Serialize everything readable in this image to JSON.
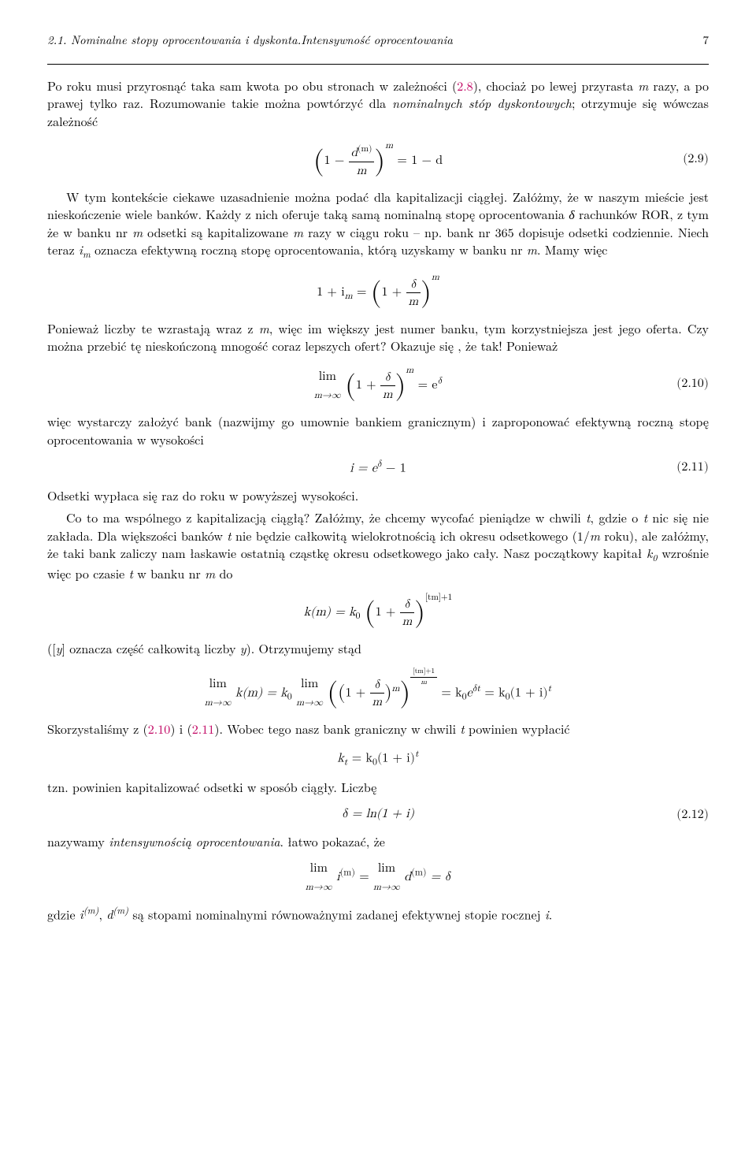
{
  "header": {
    "section": "2.1. Nominalne stopy oprocentowania i dyskonta.Intensywność oprocentowania",
    "page": "7"
  },
  "para1_a": "Po roku musi przyrosnąć taka sam kwota po obu stronach w zależności (",
  "ref28": "2.8",
  "para1_b": "), chociaż po lewej przyrasta ",
  "para1_c": " razy, a po prawej tylko raz. Rozumowanie takie można powtórzyć dla ",
  "para1_d": "nominalnych stóp dyskontowych",
  "para1_e": "; otrzymuje się wówczas zależność",
  "eq29": {
    "formula_prefix": "1 − ",
    "formula_frac_num": "d",
    "formula_frac_num_sup": "(m)",
    "formula_frac_den": "m",
    "formula_exp": "m",
    "formula_rhs": " = 1 − d",
    "number": "(2.9)"
  },
  "para2_a": "W tym kontekście ciekawe uzasadnienie można podać dla kapitalizacji ciągłej. Załóżmy, że w naszym mieście jest nieskończenie wiele banków. Każdy z nich oferuje taką samą nominalną stopę oprocentowania ",
  "para2_b": " rachunków ROR, z tym że w banku nr ",
  "para2_c": " odsetki są kapitalizowane ",
  "para2_d": " razy w ciągu roku – np. bank nr 365 dopisuje odsetki codziennie. Niech teraz ",
  "para2_e": " oznacza efektywną roczną stopę oprocentowania, którą uzyskamy w banku nr ",
  "para2_f": ". Mamy więc",
  "eq_im": {
    "lhs": "1 + i",
    "lhs_sub": "m",
    "mid": " = ",
    "frac_num": "δ",
    "frac_den": "m",
    "exp": "m"
  },
  "para3_a": "Ponieważ liczby te wzrastają wraz z ",
  "para3_b": ", więc im większy jest numer banku, tym korzystniejsza jest jego oferta. Czy można przebić tę nieskończoną mnogość coraz lepszych ofert? Okazuje się , że tak! Ponieważ",
  "eq210": {
    "lim_sub": "m→∞",
    "frac_num": "δ",
    "frac_den": "m",
    "exp": "m",
    "rhs": " = e",
    "rhs_sup": "δ",
    "number": "(2.10)"
  },
  "para4": "więc wystarczy założyć bank (nazwijmy go umownie bankiem granicznym) i zaproponować efektywną roczną stopę oprocentowania w wysokości",
  "eq211": {
    "formula": "i = e",
    "sup": "δ",
    "suffix": " − 1",
    "number": "(2.11)"
  },
  "para5": "Odsetki wypłaca się raz do roku w powyższej wysokości.",
  "para6_a": "Co to ma wspólnego z kapitalizacją ciągłą? Załóżmy, że chcemy wycofać pieniądze w chwili ",
  "para6_b": ", gdzie o ",
  "para6_c": " nic się nie zakłada. Dla większości banków ",
  "para6_d": " nie będzie całkowitą wielokrotnością ich okresu odsetkowego (1/",
  "para6_e": " roku), ale załóżmy, że taki bank zaliczy nam łaskawie ostatnią cząstkę okresu odsetkowego jako cały. Nasz początkowy kapitał ",
  "para6_f": " wzrośnie więc po czasie ",
  "para6_g": " w banku nr ",
  "para6_h": " do",
  "eq_km": {
    "lhs": "k(m) = k",
    "lhs_sub": "0",
    "frac_num": "δ",
    "frac_den": "m",
    "exp": "[tm]+1"
  },
  "para7_a": "([",
  "para7_b": "] oznacza część całkowitą liczby ",
  "para7_c": "). Otrzymujemy stąd",
  "eq_lim_km": {
    "lim_sub": "m→∞",
    "mid1": " k(m) = k",
    "sub0": "0",
    "lim2_sub": "m→∞",
    "frac_num": "δ",
    "frac_den": "m",
    "inner_exp": "m",
    "outer_exp_num": "[tm]+1",
    "outer_exp_den": "m",
    "rhs": " = k",
    "rhs2": "e",
    "rhs_sup": "δt",
    "rhs3": " = k",
    "rhs4": "(1 + i)",
    "rhs4_sup": "t"
  },
  "para8_a": "Skorzystaliśmy z (",
  "ref210": "2.10",
  "para8_b": ") i (",
  "ref211": "2.11",
  "para8_c": "). Wobec tego nasz bank graniczny w chwili ",
  "para8_d": " powinien wypłacić",
  "eq_kt": {
    "lhs": "k",
    "lhs_sub": "t",
    "mid": " = k",
    "mid_sub": "0",
    "rhs": "(1 + i)",
    "rhs_sup": "t"
  },
  "para9": "tzn. powinien kapitalizować odsetki w sposób ciągły. Liczbę",
  "eq212": {
    "formula": "δ = ln(1 + i)",
    "number": "(2.12)"
  },
  "para10_a": "nazywamy ",
  "para10_b": "intensywnością oprocentowania",
  "para10_c": ". łatwo pokazać, że",
  "eq_lim_final": {
    "lim_sub": "m→∞",
    "i": " i",
    "sup_m": "(m)",
    "mid": " = ",
    "d": " d",
    "rhs": " = δ"
  },
  "para11_a": "gdzie ",
  "para11_b": ", ",
  "para11_c": " są stopami nominalnymi równoważnymi zadanej efektywnej stopie rocznej ",
  "para11_d": "."
}
